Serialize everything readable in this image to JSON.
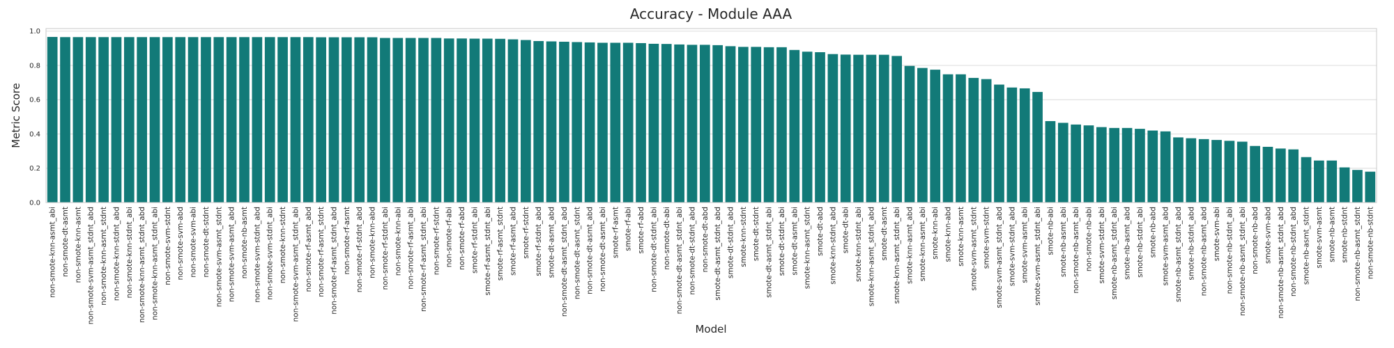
{
  "chart_data": {
    "type": "bar",
    "title": "Accuracy - Module AAA",
    "x_label": "Model",
    "y_label": "Metric Score",
    "color": "#127a78",
    "grid": true,
    "ylim": [
      0,
      1.015
    ],
    "yticks": [
      {
        "value": 0,
        "label": "0.0"
      },
      0.2,
      0.4,
      0.6,
      0.8,
      {
        "value": 1,
        "label": "1.0"
      }
    ],
    "categories": [
      "non-smote-knn-asmt_abi",
      "non-smote-dt-asmt",
      "non-smote-knn-asmt",
      "non-smote-svm-asmt_stdnt_abd",
      "non-smote-knn-asmt_stdnt",
      "non-smote-knn-stdnt_abd",
      "non-smote-knn-stdnt_abi",
      "non-smote-knn-asmt_stdnt_abd",
      "non-smote-knn-asmt_stdnt_abi",
      "non-smote-svm-stdnt",
      "non-smote-svm-abd",
      "non-smote-svm-abi",
      "non-smote-dt-stdnt",
      "non-smote-svm-asmt_stdnt",
      "non-smote-svm-asmt_abd",
      "non-smote-nb-asmt",
      "non-smote-svm-stdnt_abd",
      "non-smote-svm-stdnt_abi",
      "non-smote-knn-stdnt",
      "non-smote-svm-asmt_stdnt_abi",
      "non-smote-rf-asmt_abd",
      "non-smote-rf-asmt_stdnt",
      "non-smote-rf-asmt_stdnt_abd",
      "non-smote-rf-asmt",
      "non-smote-rf-stdnt_abd",
      "non-smote-knn-abd",
      "non-smote-rf-stdnt_abi",
      "non-smote-knn-abi",
      "non-smote-rf-asmt_abi",
      "non-smote-rf-asmt_stdnt_abi",
      "non-smote-rf-stdnt",
      "non-smote-rf-abi",
      "non-smote-rf-abd",
      "smote-rf-stdnt_abi",
      "smote-rf-asmt_stdnt_abi",
      "smote-rf-asmt_stdnt",
      "smote-rf-asmt_abd",
      "smote-rf-stdnt",
      "smote-rf-stdnt_abd",
      "smote-dt-asmt_abd",
      "non-smote-dt-asmt_stdnt_abd",
      "non-smote-dt-asmt_stdnt",
      "non-smote-dt-asmt_abd",
      "non-smote-dt-asmt_abi",
      "smote-rf-asmt",
      "smote-rf-abi",
      "smote-rf-abd",
      "non-smote-dt-stdnt_abi",
      "non-smote-dt-abi",
      "non-smote-dt-asmt_stdnt_abi",
      "non-smote-dt-stdnt_abd",
      "non-smote-dt-abd",
      "smote-dt-asmt_stdnt_abd",
      "smote-dt-stdnt_abd",
      "smote-knn-stdnt",
      "smote-dt-stdnt",
      "smote-dt-asmt_stdnt_abi",
      "smote-dt-stdnt_abi",
      "smote-dt-asmt_abi",
      "smote-knn-asmt_stdnt",
      "smote-dt-abd",
      "smote-knn-stdnt_abd",
      "smote-dt-abi",
      "smote-knn-stdnt_abi",
      "smote-knn-asmt_stdnt_abd",
      "smote-dt-asmt",
      "smote-knn-asmt_stdnt_abi",
      "smote-knn-asmt_abd",
      "smote-knn-asmt_abi",
      "smote-knn-abi",
      "smote-knn-abd",
      "smote-knn-asmt",
      "smote-svm-asmt_stdnt",
      "smote-svm-stdnt",
      "smote-svm-asmt_stdnt_abd",
      "smote-svm-stdnt_abd",
      "smote-svm-asmt_abi",
      "smote-svm-asmt_stdnt_abi",
      "smote-nb-abi",
      "smote-nb-asmt_abi",
      "non-smote-nb-asmt_abi",
      "non-smote-nb-abi",
      "smote-svm-stdnt_abi",
      "smote-nb-asmt_stdnt_abi",
      "smote-nb-asmt_abd",
      "smote-nb-stdnt_abi",
      "smote-nb-abd",
      "smote-svm-asmt_abd",
      "smote-nb-asmt_stdnt_abd",
      "smote-nb-stdnt_abd",
      "non-smote-nb-asmt_abd",
      "smote-svm-abi",
      "non-smote-nb-stdnt_abi",
      "non-smote-nb-asmt_stdnt_abi",
      "non-smote-nb-abd",
      "smote-svm-abd",
      "non-smote-nb-asmt_stdnt_abd",
      "non-smote-nb-stdnt_abd",
      "smote-nb-asmt_stdnt",
      "smote-svm-asmt",
      "smote-nb-asmt",
      "smote-nb-stdnt",
      "non-smote-nb-asmt_stdnt",
      "non-smote-nb-stdnt"
    ],
    "values": [
      0.966,
      0.965,
      0.965,
      0.965,
      0.965,
      0.965,
      0.965,
      0.965,
      0.965,
      0.965,
      0.965,
      0.965,
      0.965,
      0.965,
      0.965,
      0.965,
      0.965,
      0.965,
      0.965,
      0.965,
      0.965,
      0.964,
      0.964,
      0.964,
      0.964,
      0.964,
      0.96,
      0.96,
      0.96,
      0.96,
      0.96,
      0.957,
      0.957,
      0.956,
      0.956,
      0.955,
      0.952,
      0.948,
      0.942,
      0.94,
      0.938,
      0.936,
      0.934,
      0.932,
      0.932,
      0.932,
      0.93,
      0.926,
      0.925,
      0.922,
      0.92,
      0.92,
      0.918,
      0.912,
      0.908,
      0.908,
      0.906,
      0.906,
      0.89,
      0.88,
      0.877,
      0.866,
      0.863,
      0.862,
      0.862,
      0.862,
      0.855,
      0.797,
      0.785,
      0.775,
      0.748,
      0.748,
      0.727,
      0.72,
      0.688,
      0.671,
      0.666,
      0.645,
      0.475,
      0.465,
      0.455,
      0.45,
      0.44,
      0.435,
      0.435,
      0.43,
      0.42,
      0.415,
      0.38,
      0.375,
      0.37,
      0.365,
      0.36,
      0.355,
      0.33,
      0.325,
      0.315,
      0.31,
      0.265,
      0.245,
      0.245,
      0.205,
      0.19,
      0.18
    ]
  }
}
